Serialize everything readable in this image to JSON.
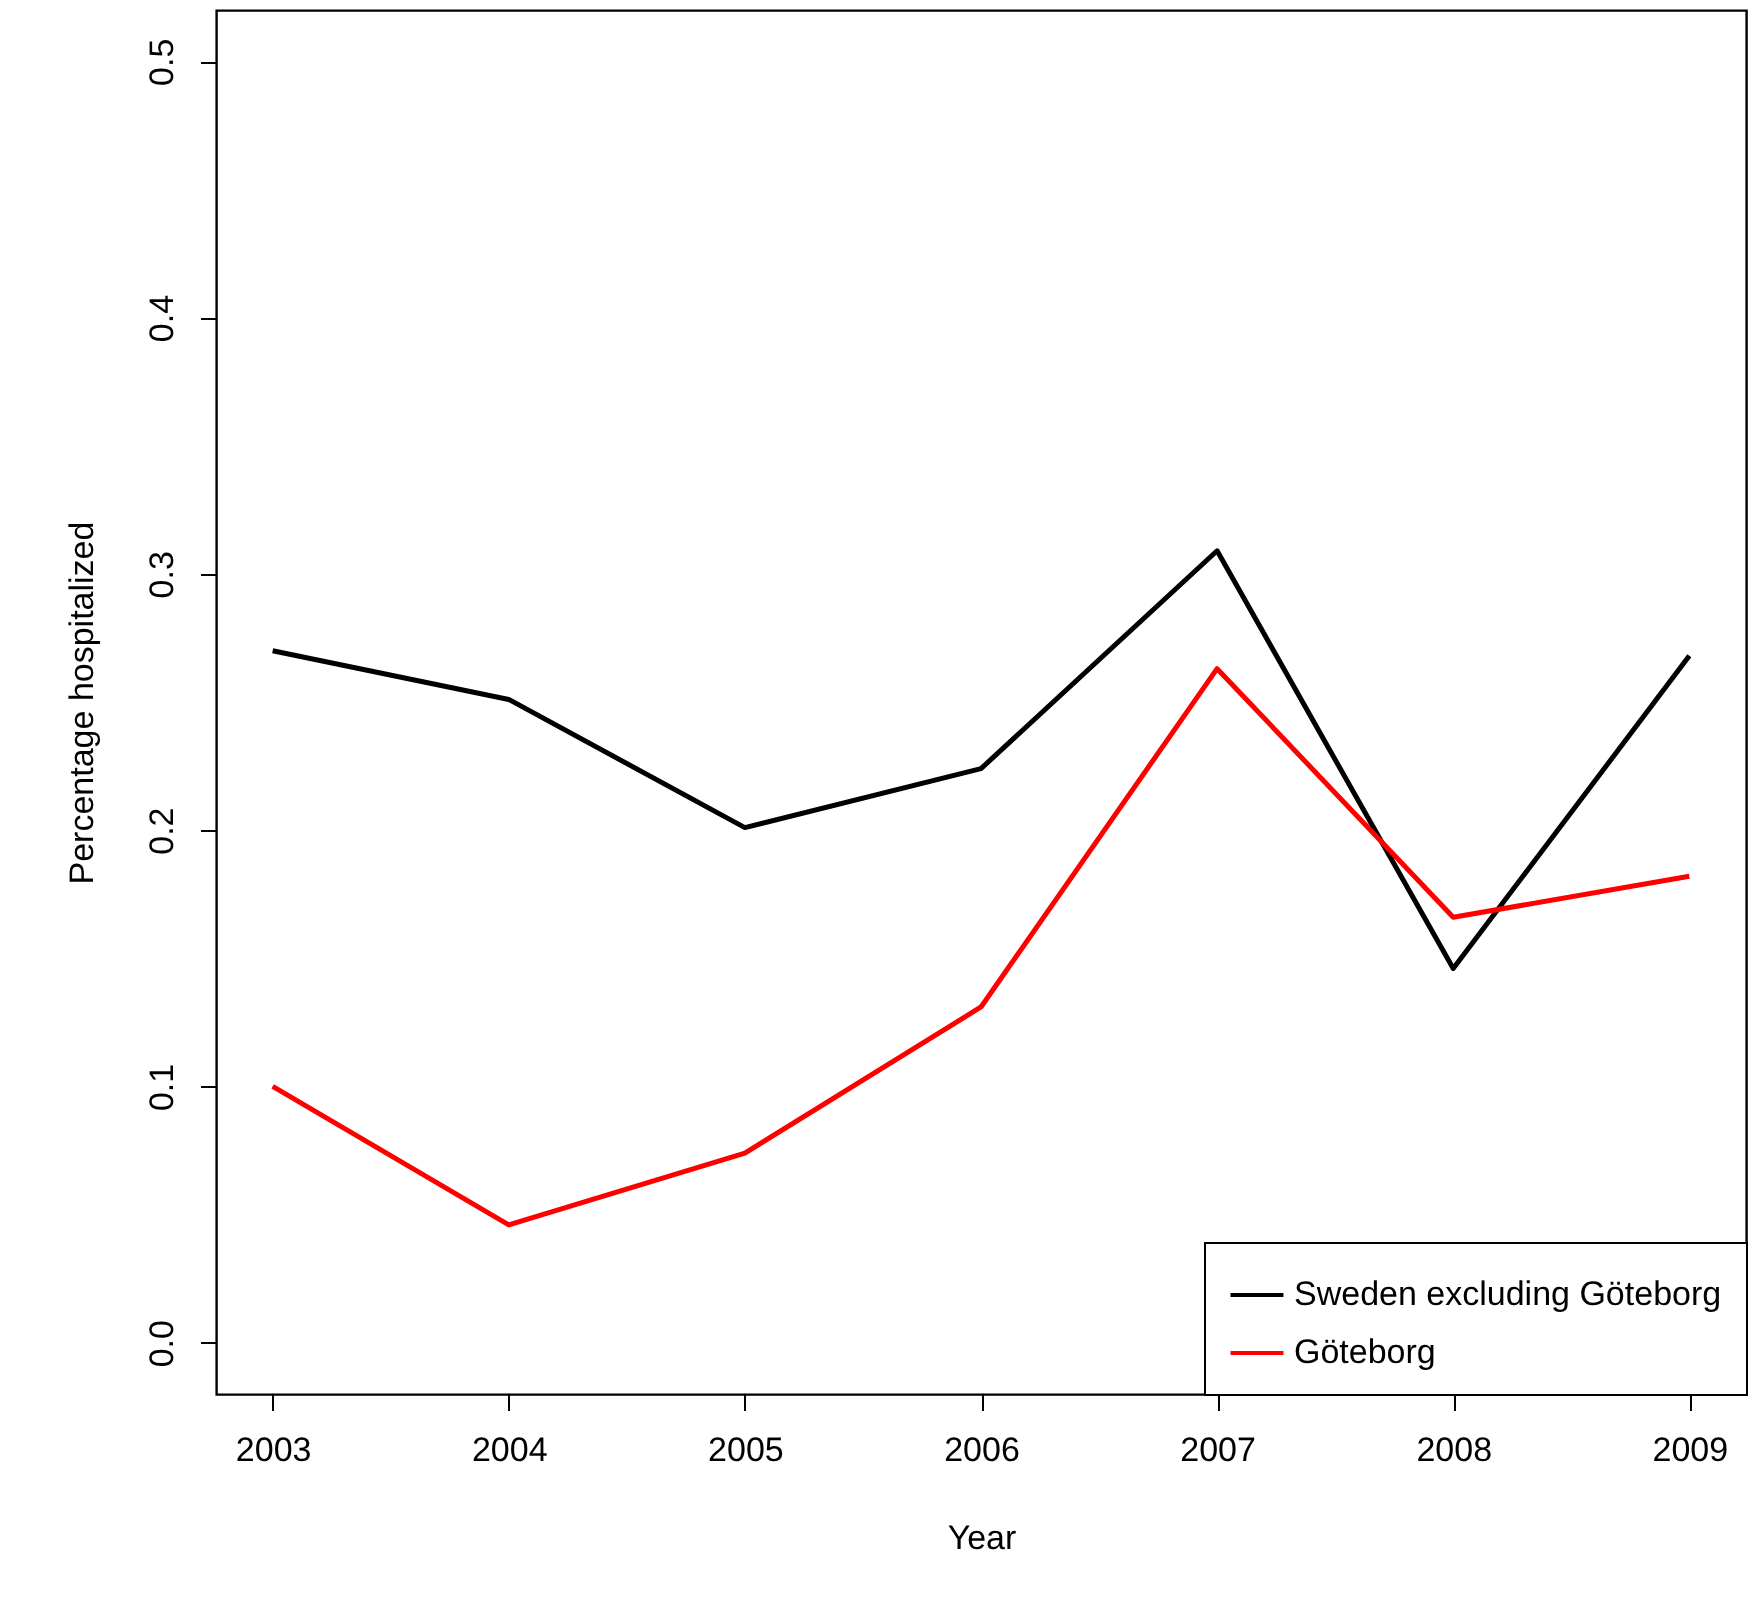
{
  "chart_data": {
    "type": "line",
    "xlabel": "Year",
    "ylabel": "Percentage hospitalized",
    "x": [
      2003,
      2004,
      2005,
      2006,
      2007,
      2008,
      2009
    ],
    "series": [
      {
        "name": "Sweden excluding Göteborg",
        "color": "#000000",
        "values": [
          0.27,
          0.251,
          0.201,
          0.224,
          0.309,
          0.146,
          0.268
        ]
      },
      {
        "name": "Göteborg",
        "color": "#ff0000",
        "values": [
          0.1,
          0.046,
          0.074,
          0.131,
          0.263,
          0.166,
          0.182
        ]
      }
    ],
    "xlim": [
      2002.76,
      2009.24
    ],
    "xticks": [
      2003,
      2004,
      2005,
      2006,
      2007,
      2008,
      2009
    ],
    "ylim": [
      -0.02,
      0.52
    ],
    "yticks": [
      {
        "value": 0,
        "label": "0.0"
      },
      0.1,
      0.2,
      0.3,
      0.4,
      0.5
    ],
    "grid": false,
    "legend": "bottom right",
    "marker": "none",
    "line_style": "solid"
  }
}
